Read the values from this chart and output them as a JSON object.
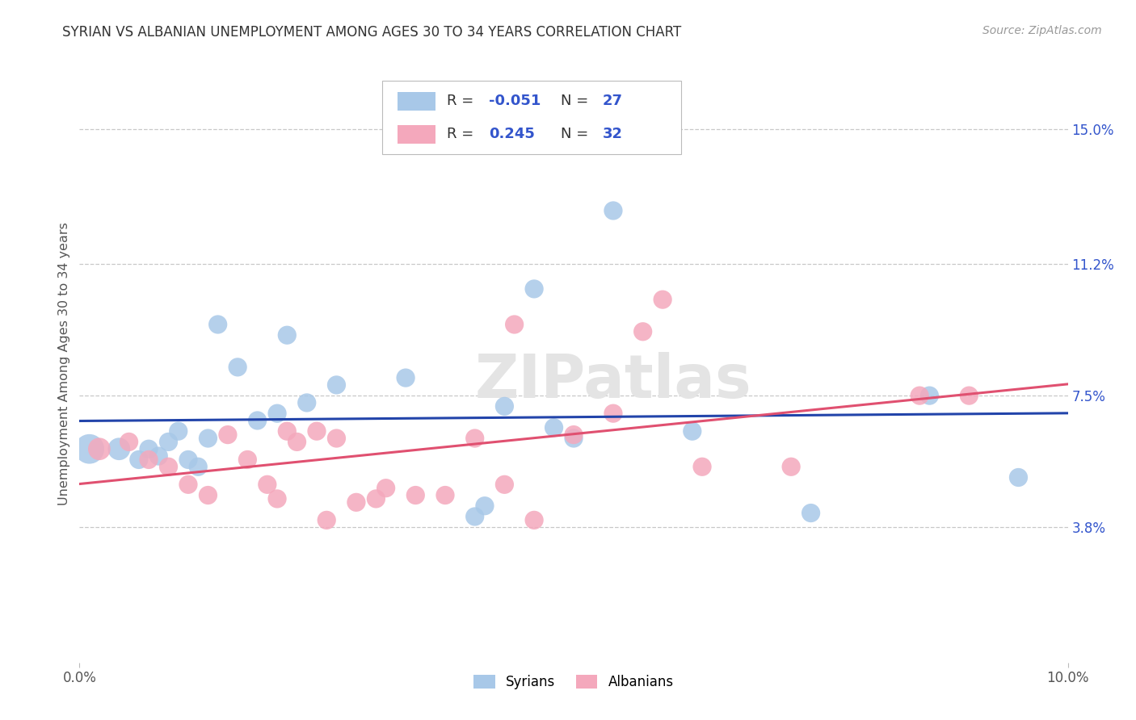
{
  "title": "SYRIAN VS ALBANIAN UNEMPLOYMENT AMONG AGES 30 TO 34 YEARS CORRELATION CHART",
  "source": "Source: ZipAtlas.com",
  "ylabel": "Unemployment Among Ages 30 to 34 years",
  "xlim": [
    0.0,
    0.1
  ],
  "ylim": [
    0.0,
    0.168
  ],
  "ytick_right_labels": [
    "3.8%",
    "7.5%",
    "11.2%",
    "15.0%"
  ],
  "ytick_right_values": [
    0.038,
    0.075,
    0.112,
    0.15
  ],
  "syrians_color": "#a8c8e8",
  "albanians_color": "#f4a8bc",
  "syrians_line_color": "#2244aa",
  "albanians_line_color": "#e05070",
  "background_color": "#ffffff",
  "grid_color": "#c8c8c8",
  "syrians_R": "-0.051",
  "syrians_N": "27",
  "albanians_R": "0.245",
  "albanians_N": "32",
  "legend_text_color": "#333333",
  "legend_value_color": "#3355cc",
  "syrians_x": [
    0.001,
    0.004,
    0.006,
    0.007,
    0.008,
    0.009,
    0.01,
    0.011,
    0.012,
    0.013,
    0.014,
    0.016,
    0.018,
    0.02,
    0.021,
    0.023,
    0.026,
    0.033,
    0.04,
    0.041,
    0.043,
    0.046,
    0.048,
    0.05,
    0.054,
    0.062,
    0.074,
    0.086,
    0.095
  ],
  "syrians_y": [
    0.06,
    0.06,
    0.057,
    0.06,
    0.058,
    0.062,
    0.065,
    0.057,
    0.055,
    0.063,
    0.095,
    0.083,
    0.068,
    0.07,
    0.092,
    0.073,
    0.078,
    0.08,
    0.041,
    0.044,
    0.072,
    0.105,
    0.066,
    0.063,
    0.127,
    0.065,
    0.042,
    0.075,
    0.052
  ],
  "syrians_sizes": [
    700,
    400,
    280,
    280,
    280,
    280,
    280,
    280,
    280,
    280,
    280,
    280,
    280,
    280,
    280,
    280,
    280,
    280,
    280,
    280,
    280,
    280,
    280,
    280,
    280,
    280,
    280,
    280,
    280
  ],
  "albanians_x": [
    0.002,
    0.005,
    0.007,
    0.009,
    0.011,
    0.013,
    0.015,
    0.017,
    0.019,
    0.02,
    0.021,
    0.022,
    0.024,
    0.025,
    0.026,
    0.028,
    0.03,
    0.031,
    0.034,
    0.037,
    0.04,
    0.043,
    0.044,
    0.046,
    0.05,
    0.054,
    0.057,
    0.059,
    0.063,
    0.072,
    0.085,
    0.09
  ],
  "albanians_y": [
    0.06,
    0.062,
    0.057,
    0.055,
    0.05,
    0.047,
    0.064,
    0.057,
    0.05,
    0.046,
    0.065,
    0.062,
    0.065,
    0.04,
    0.063,
    0.045,
    0.046,
    0.049,
    0.047,
    0.047,
    0.063,
    0.05,
    0.095,
    0.04,
    0.064,
    0.07,
    0.093,
    0.102,
    0.055,
    0.055,
    0.075,
    0.075
  ],
  "albanians_sizes": [
    400,
    280,
    280,
    280,
    280,
    280,
    280,
    280,
    280,
    280,
    280,
    280,
    280,
    280,
    280,
    280,
    280,
    280,
    280,
    280,
    280,
    280,
    280,
    280,
    280,
    280,
    280,
    280,
    280,
    280,
    280,
    280
  ]
}
